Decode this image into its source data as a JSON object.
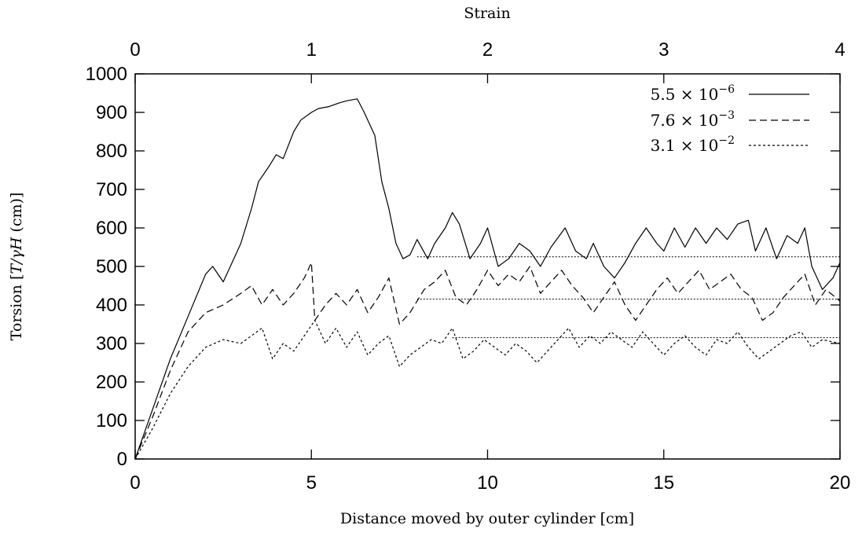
{
  "chart_data": {
    "type": "line",
    "xlabel": "Distance moved by outer cylinder [cm]",
    "ylabel_prefix": "Torsion [",
    "ylabel_math": "T/γH",
    "ylabel_suffix": " (cm)]",
    "top_xlabel": "Strain",
    "xlim": [
      0,
      20
    ],
    "ylim": [
      0,
      1000
    ],
    "top_xlim": [
      0,
      4
    ],
    "x_ticks": [
      "0",
      "5",
      "10",
      "15",
      "20"
    ],
    "y_ticks": [
      "0",
      "100",
      "200",
      "300",
      "400",
      "500",
      "600",
      "700",
      "800",
      "900",
      "1000"
    ],
    "top_ticks": [
      "0",
      "1",
      "2",
      "3",
      "4"
    ],
    "grid": false,
    "legend_position": "top-right",
    "series": [
      {
        "name_base": "5.5 × 10",
        "name_exp": "−6",
        "style": "solid",
        "points": [
          [
            0,
            0
          ],
          [
            0.5,
            130
          ],
          [
            1.0,
            260
          ],
          [
            1.5,
            370
          ],
          [
            2.0,
            480
          ],
          [
            2.2,
            500
          ],
          [
            2.5,
            460
          ],
          [
            2.8,
            520
          ],
          [
            3.0,
            560
          ],
          [
            3.3,
            650
          ],
          [
            3.5,
            720
          ],
          [
            3.8,
            760
          ],
          [
            4.0,
            790
          ],
          [
            4.2,
            780
          ],
          [
            4.5,
            850
          ],
          [
            4.7,
            880
          ],
          [
            5.0,
            900
          ],
          [
            5.2,
            910
          ],
          [
            5.5,
            915
          ],
          [
            5.8,
            925
          ],
          [
            6.0,
            930
          ],
          [
            6.3,
            935
          ],
          [
            6.5,
            900
          ],
          [
            6.8,
            840
          ],
          [
            7.0,
            720
          ],
          [
            7.2,
            650
          ],
          [
            7.4,
            560
          ],
          [
            7.6,
            520
          ],
          [
            7.8,
            530
          ],
          [
            8.0,
            570
          ],
          [
            8.3,
            520
          ],
          [
            8.5,
            560
          ],
          [
            8.8,
            600
          ],
          [
            9.0,
            640
          ],
          [
            9.2,
            610
          ],
          [
            9.5,
            520
          ],
          [
            9.8,
            560
          ],
          [
            10.0,
            600
          ],
          [
            10.3,
            500
          ],
          [
            10.6,
            520
          ],
          [
            10.9,
            560
          ],
          [
            11.2,
            540
          ],
          [
            11.5,
            500
          ],
          [
            11.8,
            550
          ],
          [
            12.2,
            600
          ],
          [
            12.5,
            540
          ],
          [
            12.8,
            520
          ],
          [
            13.0,
            560
          ],
          [
            13.3,
            500
          ],
          [
            13.6,
            470
          ],
          [
            13.9,
            510
          ],
          [
            14.2,
            560
          ],
          [
            14.5,
            600
          ],
          [
            14.8,
            560
          ],
          [
            15.0,
            540
          ],
          [
            15.3,
            600
          ],
          [
            15.6,
            550
          ],
          [
            15.9,
            600
          ],
          [
            16.2,
            560
          ],
          [
            16.5,
            600
          ],
          [
            16.8,
            570
          ],
          [
            17.1,
            610
          ],
          [
            17.4,
            620
          ],
          [
            17.6,
            540
          ],
          [
            17.9,
            600
          ],
          [
            18.2,
            520
          ],
          [
            18.5,
            580
          ],
          [
            18.8,
            560
          ],
          [
            19.0,
            600
          ],
          [
            19.2,
            500
          ],
          [
            19.5,
            440
          ],
          [
            19.8,
            470
          ],
          [
            20.0,
            510
          ]
        ],
        "steady_level": 525,
        "steady_from": 8
      },
      {
        "name_base": "7.6 × 10",
        "name_exp": "−3",
        "style": "dashed",
        "points": [
          [
            0,
            0
          ],
          [
            0.5,
            110
          ],
          [
            1.0,
            230
          ],
          [
            1.5,
            330
          ],
          [
            2.0,
            380
          ],
          [
            2.5,
            400
          ],
          [
            3.0,
            430
          ],
          [
            3.3,
            450
          ],
          [
            3.6,
            400
          ],
          [
            3.9,
            440
          ],
          [
            4.2,
            400
          ],
          [
            4.5,
            430
          ],
          [
            4.8,
            470
          ],
          [
            5.0,
            510
          ],
          [
            5.1,
            360
          ],
          [
            5.4,
            400
          ],
          [
            5.7,
            430
          ],
          [
            6.0,
            400
          ],
          [
            6.3,
            440
          ],
          [
            6.6,
            380
          ],
          [
            6.9,
            420
          ],
          [
            7.2,
            470
          ],
          [
            7.5,
            350
          ],
          [
            7.8,
            380
          ],
          [
            8.2,
            440
          ],
          [
            8.5,
            460
          ],
          [
            8.8,
            490
          ],
          [
            9.1,
            420
          ],
          [
            9.4,
            400
          ],
          [
            9.7,
            440
          ],
          [
            10.0,
            490
          ],
          [
            10.3,
            450
          ],
          [
            10.6,
            480
          ],
          [
            10.9,
            460
          ],
          [
            11.2,
            500
          ],
          [
            11.5,
            430
          ],
          [
            11.8,
            460
          ],
          [
            12.1,
            490
          ],
          [
            12.4,
            450
          ],
          [
            12.7,
            420
          ],
          [
            13.0,
            380
          ],
          [
            13.3,
            420
          ],
          [
            13.6,
            460
          ],
          [
            13.9,
            400
          ],
          [
            14.2,
            360
          ],
          [
            14.5,
            400
          ],
          [
            14.8,
            440
          ],
          [
            15.1,
            470
          ],
          [
            15.4,
            430
          ],
          [
            15.7,
            460
          ],
          [
            16.0,
            490
          ],
          [
            16.3,
            440
          ],
          [
            16.6,
            460
          ],
          [
            16.9,
            480
          ],
          [
            17.2,
            440
          ],
          [
            17.5,
            420
          ],
          [
            17.8,
            360
          ],
          [
            18.1,
            380
          ],
          [
            18.4,
            420
          ],
          [
            18.7,
            450
          ],
          [
            19.0,
            480
          ],
          [
            19.3,
            400
          ],
          [
            19.6,
            440
          ],
          [
            20.0,
            410
          ]
        ],
        "steady_level": 415,
        "steady_from": 8
      },
      {
        "name_base": "3.1 × 10",
        "name_exp": "−2",
        "style": "dotted",
        "points": [
          [
            0,
            0
          ],
          [
            0.5,
            80
          ],
          [
            1.0,
            170
          ],
          [
            1.5,
            240
          ],
          [
            2.0,
            290
          ],
          [
            2.5,
            310
          ],
          [
            3.0,
            300
          ],
          [
            3.3,
            320
          ],
          [
            3.6,
            340
          ],
          [
            3.9,
            260
          ],
          [
            4.2,
            300
          ],
          [
            4.5,
            280
          ],
          [
            4.8,
            320
          ],
          [
            5.1,
            360
          ],
          [
            5.4,
            300
          ],
          [
            5.7,
            340
          ],
          [
            6.0,
            290
          ],
          [
            6.3,
            330
          ],
          [
            6.6,
            270
          ],
          [
            6.9,
            300
          ],
          [
            7.2,
            320
          ],
          [
            7.5,
            240
          ],
          [
            7.8,
            270
          ],
          [
            8.1,
            290
          ],
          [
            8.4,
            310
          ],
          [
            8.7,
            300
          ],
          [
            9.0,
            340
          ],
          [
            9.3,
            260
          ],
          [
            9.6,
            280
          ],
          [
            9.9,
            310
          ],
          [
            10.2,
            290
          ],
          [
            10.5,
            270
          ],
          [
            10.8,
            300
          ],
          [
            11.1,
            280
          ],
          [
            11.4,
            250
          ],
          [
            11.7,
            280
          ],
          [
            12.0,
            310
          ],
          [
            12.3,
            340
          ],
          [
            12.6,
            290
          ],
          [
            12.9,
            320
          ],
          [
            13.2,
            300
          ],
          [
            13.5,
            330
          ],
          [
            13.8,
            310
          ],
          [
            14.1,
            290
          ],
          [
            14.4,
            330
          ],
          [
            14.7,
            300
          ],
          [
            15.0,
            270
          ],
          [
            15.3,
            300
          ],
          [
            15.6,
            320
          ],
          [
            15.9,
            290
          ],
          [
            16.2,
            270
          ],
          [
            16.5,
            310
          ],
          [
            16.8,
            300
          ],
          [
            17.1,
            330
          ],
          [
            17.4,
            290
          ],
          [
            17.7,
            260
          ],
          [
            18.0,
            280
          ],
          [
            18.3,
            300
          ],
          [
            18.6,
            320
          ],
          [
            18.9,
            330
          ],
          [
            19.2,
            290
          ],
          [
            19.5,
            310
          ],
          [
            20.0,
            300
          ]
        ],
        "steady_level": 315,
        "steady_from": 9
      }
    ]
  }
}
